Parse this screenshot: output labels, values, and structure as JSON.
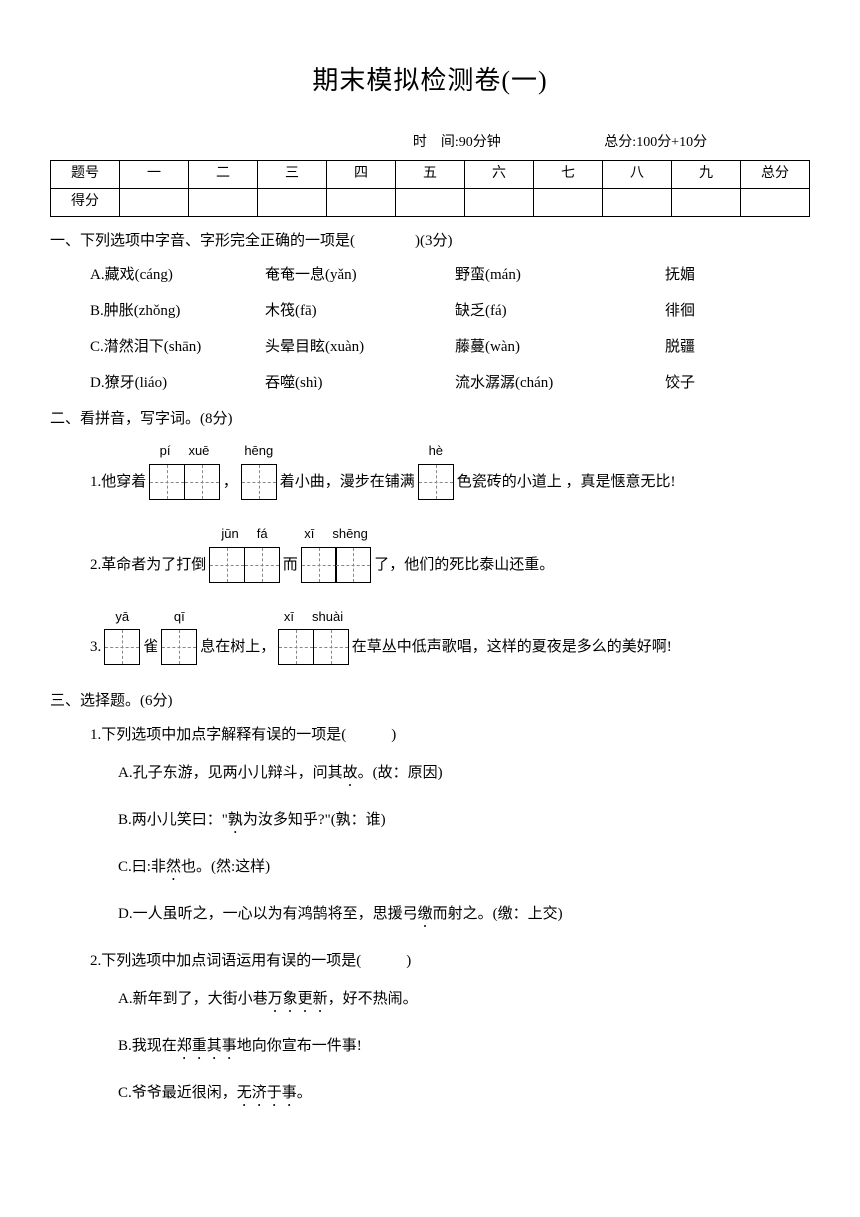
{
  "title": "期末模拟检测卷(一)",
  "meta": {
    "time_label": "时　间:",
    "time_value": "90分钟",
    "total_label": "总分:",
    "total_value": "100分+10分"
  },
  "score_table": {
    "header_tihao": "题号",
    "header_defen": "得分",
    "cols": [
      "一",
      "二",
      "三",
      "四",
      "五",
      "六",
      "七",
      "八",
      "九",
      "总分"
    ]
  },
  "q1": {
    "title": "一、下列选项中字音、字形完全正确的一项是(　　　　)(3分)",
    "rows": [
      [
        "A.藏戏(cáng)",
        "奄奄一息(yǎn)",
        "野蛮(mán)",
        "抚媚"
      ],
      [
        "B.肿胀(zhǒng)",
        "木筏(fā)",
        "缺乏(fá)",
        "徘徊"
      ],
      [
        "C.潸然泪下(shān)",
        "头晕目眩(xuàn)",
        "藤蔓(wàn)",
        "脱疆"
      ],
      [
        "D.獠牙(liáo)",
        "吞噬(shì)",
        "流水潺潺(chán)",
        "饺子"
      ]
    ]
  },
  "q2": {
    "title": "二、看拼音，写字词。(8分)",
    "line1": {
      "t1": "1.他穿着",
      "p1": [
        "pí",
        "xuē"
      ],
      "t2": "，",
      "p2": [
        "hēng"
      ],
      "t3": "着小曲，漫步在铺满",
      "p3": [
        "hè"
      ],
      "t4": "色瓷砖的小道上 ，真是惬意无比!"
    },
    "line2": {
      "t1": "2.革命者为了打倒",
      "p1": [
        "jūn",
        "fá"
      ],
      "t2": "而",
      "p2": [
        "xī",
        "shēng"
      ],
      "t3": "了，他们的死比泰山还重。"
    },
    "line3": {
      "t1": "3.",
      "p1": [
        "yā"
      ],
      "t2": "雀",
      "p2": [
        "qī"
      ],
      "t3": "息在树上，",
      "p3": [
        "xī",
        "shuài"
      ],
      "t4": "在草丛中低声歌唱，这样的夏夜是多么的美好啊!"
    }
  },
  "q3": {
    "title": "三、选择题。(6分)",
    "sub1": {
      "stem": "1.下列选项中加点字解释有误的一项是(　　　)",
      "a_pre": "A.孔子东游，见两小儿辩斗，问其",
      "a_dot": "故",
      "a_post": "。(故：原因)",
      "b_pre": "B.两小儿笑曰：\"",
      "b_dot": "孰",
      "b_post": "为汝多知乎?\"(孰：谁)",
      "c_pre": "C.曰:非",
      "c_dot": "然",
      "c_post": "也。(然:这样)",
      "d_pre": "D.一人虽听之，一心以为有鸿鹄将至，思援弓",
      "d_dot": "缴",
      "d_post": "而射之。(缴：上交)"
    },
    "sub2": {
      "stem": "2.下列选项中加点词语运用有误的一项是(　　　)",
      "a_pre": "A.新年到了，大街小巷",
      "a_dot": "万象更新",
      "a_post": "，好不热闹。",
      "b_pre": "B.我现在",
      "b_dot": "郑重其事",
      "b_post": "地向你宣布一件事!",
      "c_pre": "C.爷爷最近很闲，",
      "c_dot": "无济于事",
      "c_post": "。"
    }
  }
}
